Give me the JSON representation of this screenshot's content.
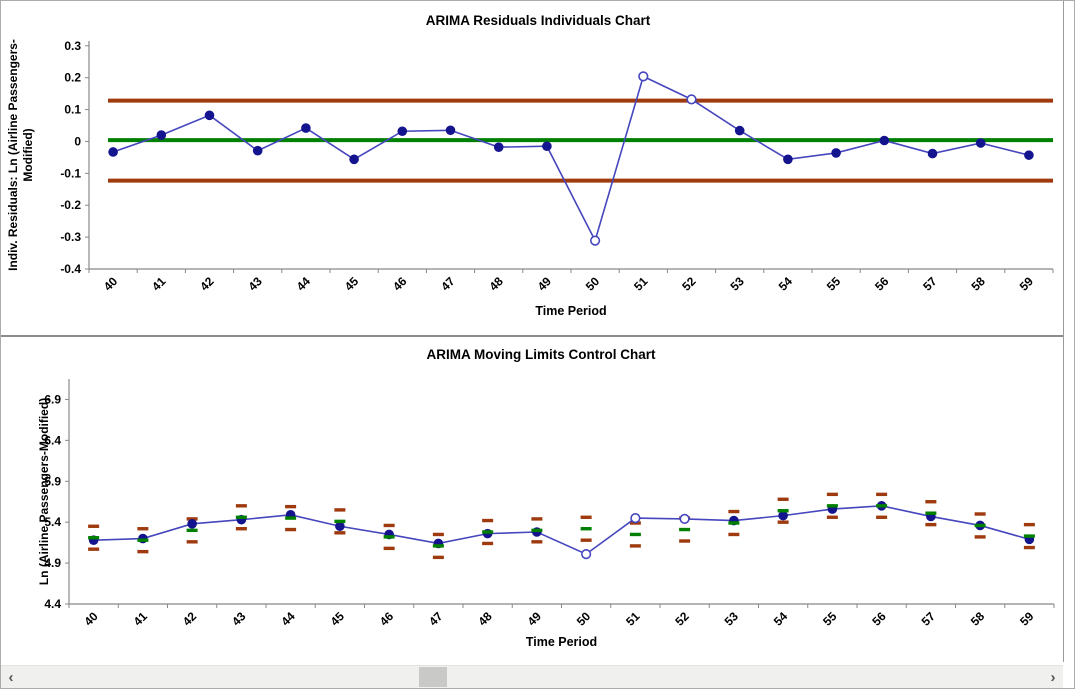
{
  "scrollbar": {
    "left_arrow": "‹",
    "right_arrow": "›"
  },
  "colors": {
    "series_line": "#4646be",
    "marker": "#14148f",
    "limit": "#9e3a0e",
    "center": "#008000",
    "axis": "#888888",
    "text": "#000000"
  },
  "chart_data": [
    {
      "type": "line",
      "title": "ARIMA Residuals Individuals Chart",
      "xlabel": "Time Period",
      "ylabel": "Indiv. Residuals: Ln (Airline Passengers-Modified)",
      "ylabel_lines": [
        "Indiv. Residuals: Ln (Airline Passengers-",
        "Modified)"
      ],
      "categories": [
        "40",
        "41",
        "42",
        "43",
        "44",
        "45",
        "46",
        "47",
        "48",
        "49",
        "50",
        "51",
        "52",
        "53",
        "54",
        "55",
        "56",
        "57",
        "58",
        "59"
      ],
      "values": [
        -0.033,
        0.02,
        0.082,
        -0.029,
        0.042,
        -0.056,
        0.032,
        0.035,
        -0.018,
        -0.015,
        -0.311,
        0.204,
        0.132,
        0.034,
        -0.056,
        -0.036,
        0.003,
        -0.038,
        -0.005,
        -0.043
      ],
      "ucl": 0.128,
      "center_line": 0.004,
      "lcl": -0.123,
      "out_of_control": [
        "50",
        "51",
        "52"
      ],
      "ylim": [
        -0.4,
        0.315
      ],
      "yticks": [
        "0.3",
        "0.2",
        "0.1",
        "0",
        "-0.1",
        "-0.2",
        "-0.3",
        "-0.4"
      ],
      "grid": false,
      "legend": "none"
    },
    {
      "type": "line",
      "title": "ARIMA Moving Limits Control Chart",
      "xlabel": "Time Period",
      "ylabel": "Ln (Airline Passengers-Modified)",
      "ylabel_lines": [
        "Ln (Airline Passengers-Modified)"
      ],
      "categories": [
        "40",
        "41",
        "42",
        "43",
        "44",
        "45",
        "46",
        "47",
        "48",
        "49",
        "50",
        "51",
        "52",
        "53",
        "54",
        "55",
        "56",
        "57",
        "58",
        "59"
      ],
      "values": [
        5.18,
        5.2,
        5.38,
        5.43,
        5.49,
        5.35,
        5.25,
        5.14,
        5.26,
        5.28,
        5.01,
        5.45,
        5.44,
        5.42,
        5.48,
        5.56,
        5.6,
        5.47,
        5.36,
        5.19
      ],
      "center_line": [
        5.21,
        5.18,
        5.3,
        5.46,
        5.45,
        5.41,
        5.22,
        5.11,
        5.28,
        5.3,
        5.32,
        5.25,
        5.31,
        5.39,
        5.54,
        5.6,
        5.6,
        5.51,
        5.36,
        5.23
      ],
      "ucl": [
        5.35,
        5.32,
        5.44,
        5.6,
        5.59,
        5.55,
        5.36,
        5.25,
        5.42,
        5.44,
        5.46,
        5.39,
        5.45,
        5.53,
        5.68,
        5.74,
        5.74,
        5.65,
        5.5,
        5.37
      ],
      "lcl": [
        5.07,
        5.04,
        5.16,
        5.32,
        5.31,
        5.27,
        5.08,
        4.97,
        5.14,
        5.16,
        5.18,
        5.11,
        5.17,
        5.25,
        5.4,
        5.46,
        5.46,
        5.37,
        5.22,
        5.09
      ],
      "out_of_control": [
        "50",
        "51",
        "52"
      ],
      "ylim": [
        4.4,
        7.15
      ],
      "yticks": [
        "6.9",
        "6.4",
        "5.9",
        "5.4",
        "4.9",
        "4.4"
      ],
      "grid": false,
      "legend": "none"
    }
  ]
}
